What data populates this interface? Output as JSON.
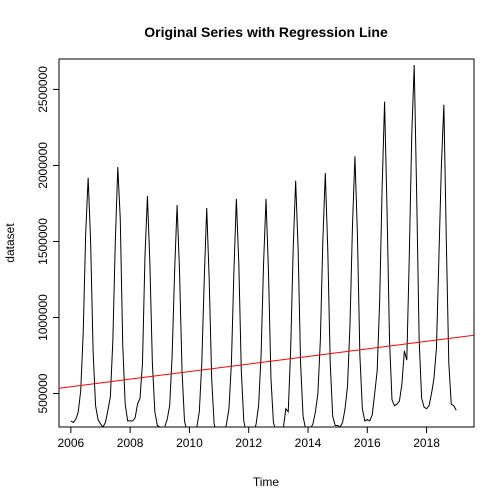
{
  "chart_data": {
    "type": "line",
    "title": "Original Series with Regression Line",
    "xlabel": "Time",
    "ylabel": "dataset",
    "xlim": [
      2005.6,
      2019.6
    ],
    "ylim": [
      280000,
      2700000
    ],
    "x_ticks": [
      2006,
      2008,
      2010,
      2012,
      2014,
      2016,
      2018
    ],
    "x_tick_labels": [
      "2006",
      "2008",
      "2010",
      "2012",
      "2014",
      "2016",
      "2018"
    ],
    "y_ticks": [
      500000,
      1000000,
      1500000,
      2000000,
      2500000
    ],
    "y_tick_labels": [
      "500000",
      "1000000",
      "1500000",
      "2000000",
      "2500000"
    ],
    "grid": false,
    "series": [
      {
        "color": "#000000",
        "start": 2006.0,
        "frequency": 12,
        "values": [
          320000,
          310000,
          330000,
          380000,
          520000,
          900000,
          1550000,
          1920000,
          1500000,
          780000,
          420000,
          330000,
          300000,
          280000,
          310000,
          390000,
          480000,
          850000,
          1500000,
          1990000,
          1650000,
          820000,
          430000,
          320000,
          320000,
          320000,
          340000,
          430000,
          470000,
          700000,
          1400000,
          1800000,
          1350000,
          700000,
          380000,
          290000,
          280000,
          260000,
          280000,
          330000,
          420000,
          750000,
          1300000,
          1740000,
          1300000,
          650000,
          320000,
          250000,
          220000,
          210000,
          230000,
          280000,
          380000,
          700000,
          1250000,
          1720000,
          1250000,
          600000,
          300000,
          240000,
          220000,
          210000,
          230000,
          300000,
          400000,
          700000,
          1300000,
          1780000,
          1350000,
          650000,
          320000,
          240000,
          220000,
          220000,
          240000,
          300000,
          420000,
          750000,
          1350000,
          1780000,
          1300000,
          600000,
          310000,
          250000,
          250000,
          240000,
          270000,
          400000,
          380000,
          800000,
          1450000,
          1900000,
          1450000,
          700000,
          350000,
          270000,
          280000,
          270000,
          300000,
          380000,
          500000,
          850000,
          1500000,
          1950000,
          1450000,
          700000,
          350000,
          290000,
          290000,
          280000,
          310000,
          400000,
          550000,
          950000,
          1600000,
          2060000,
          1550000,
          750000,
          400000,
          320000,
          330000,
          320000,
          360000,
          500000,
          650000,
          1100000,
          1850000,
          2420000,
          1700000,
          850000,
          460000,
          420000,
          430000,
          450000,
          560000,
          780000,
          720000,
          1400000,
          2200000,
          2660000,
          1800000,
          850000,
          470000,
          410000,
          400000,
          420000,
          500000,
          600000,
          800000,
          1400000,
          2000000,
          2400000,
          1500000,
          700000,
          430000,
          420000,
          390000
        ]
      },
      {
        "color": "#ff0000",
        "type": "regression",
        "x": [
          2005.6,
          2019.6
        ],
        "y": [
          535000,
          883000
        ]
      }
    ]
  }
}
